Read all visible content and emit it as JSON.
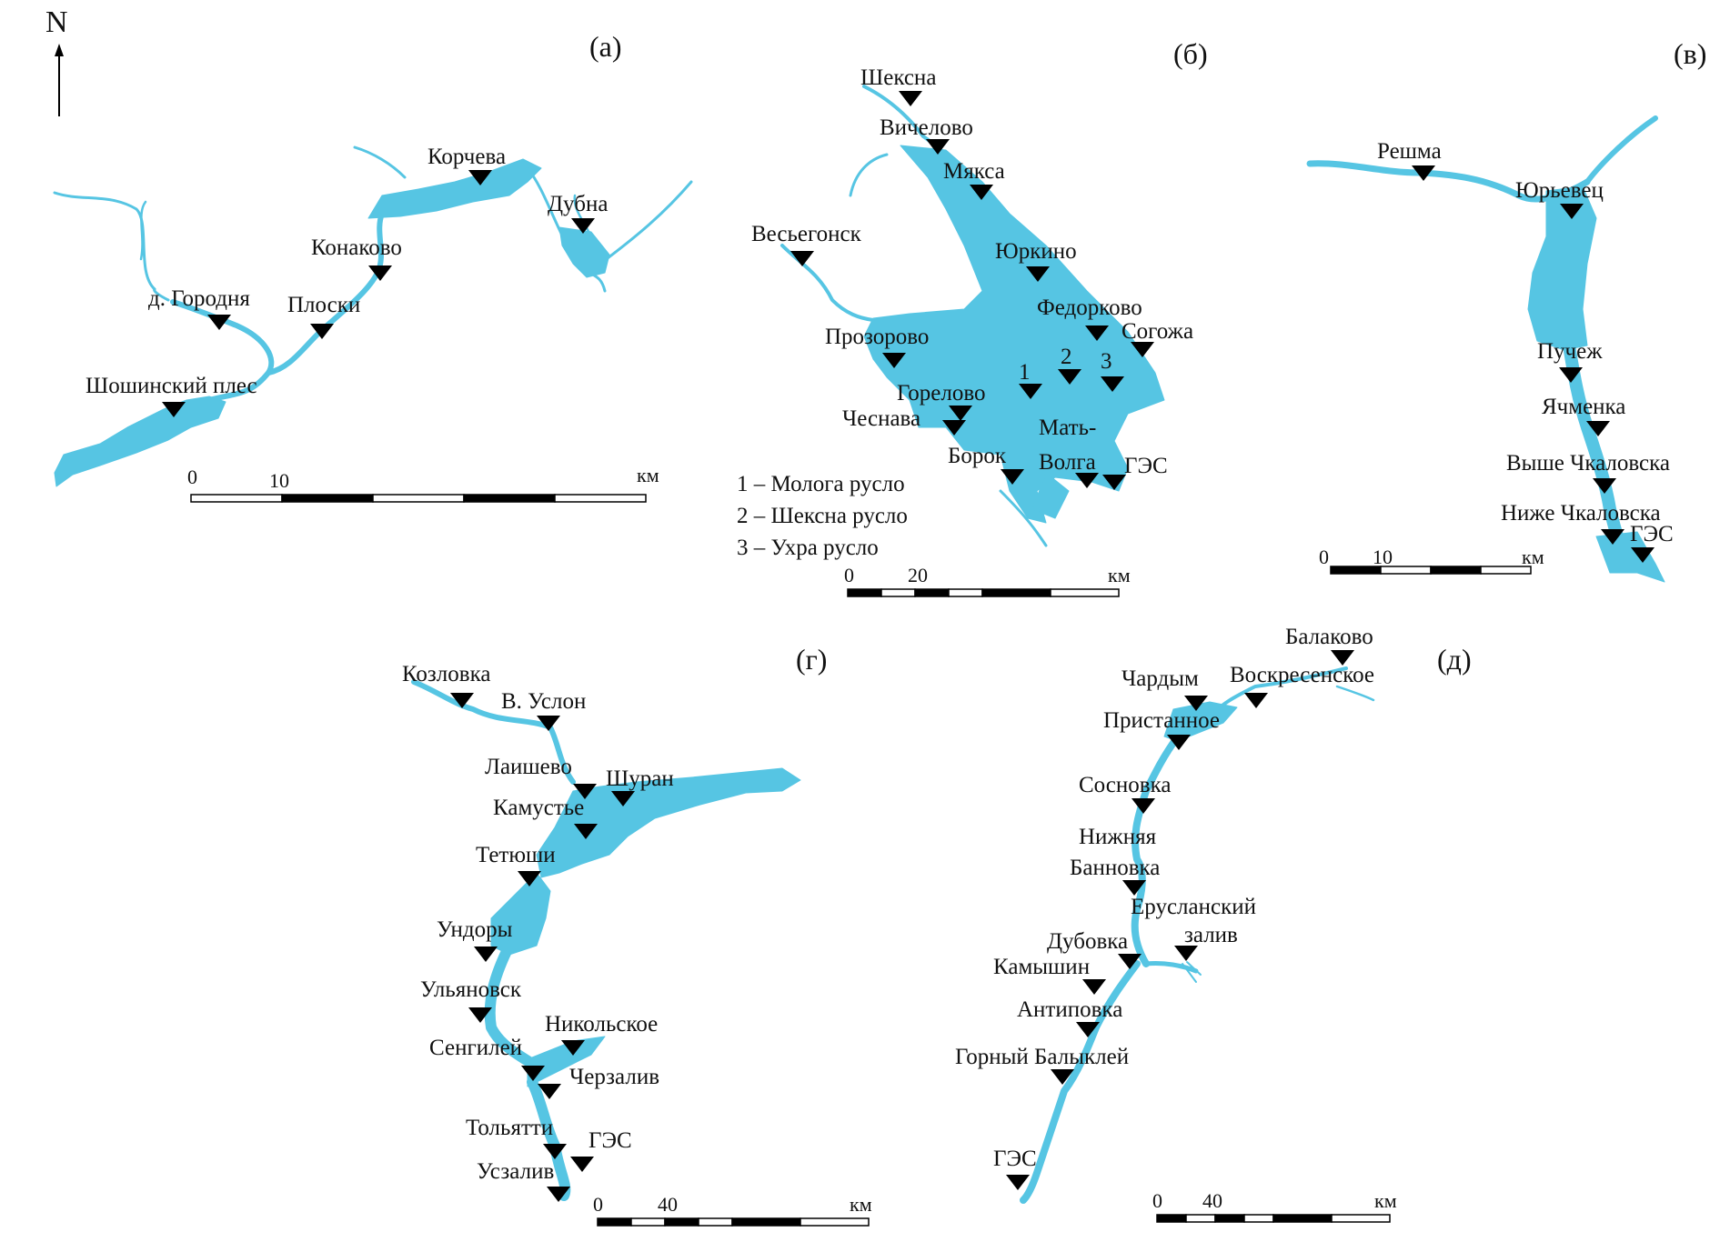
{
  "north": "N",
  "panels": [
    {
      "id": "a",
      "label": "(а)",
      "stations": [
        "Корчева",
        "Дубна",
        "Конаково",
        "д. Городня",
        "Плоски",
        "Шошинский плес"
      ],
      "scale": {
        "start": "0",
        "mid": "10",
        "unit": "км"
      }
    },
    {
      "id": "b",
      "label": "(б)",
      "stations": [
        "Шексна",
        "Вичелово",
        "Мякса",
        "Весьегонск",
        "Юркино",
        "Федорково",
        "Согожа",
        "Прозорово",
        "1",
        "2",
        "3",
        "Горелово",
        "Чеснава",
        "Мать-",
        "Волга",
        "ГЭС",
        "Борок"
      ],
      "legend": [
        "1 – Молога русло",
        "2 – Шексна русло",
        "3 – Ухра русло"
      ],
      "scale": {
        "start": "0",
        "mid": "20",
        "unit": "км"
      }
    },
    {
      "id": "v",
      "label": "(в)",
      "stations": [
        "Решма",
        "Юрьевец",
        "Пучеж",
        "Ячменка",
        "Выше Чкаловска",
        "Ниже Чкаловска",
        "ГЭС"
      ],
      "scale": {
        "start": "0",
        "mid": "10",
        "unit": "км"
      }
    },
    {
      "id": "g",
      "label": "(г)",
      "stations": [
        "Козловка",
        "В. Услон",
        "Лаишево",
        "Шуран",
        "Камустье",
        "Тетюши",
        "Ундоры",
        "Ульяновск",
        "Никольское",
        "Сенгилей",
        "Черзалив",
        "Тольятти",
        "ГЭС",
        "Усзалив"
      ],
      "scale": {
        "start": "0",
        "mid": "40",
        "unit": "км"
      }
    },
    {
      "id": "d",
      "label": "(д)",
      "stations": [
        "Балаково",
        "Чардым",
        "Воскресенское",
        "Пристанное",
        "Сосновка",
        "Нижняя",
        "Банновка",
        "Еруслански­й",
        "залив",
        "Дубовка",
        "Камышин",
        "Антиповка",
        "Горный Балыклей",
        "ГЭС"
      ],
      "scale": {
        "start": "0",
        "mid": "40",
        "unit": "км"
      }
    }
  ],
  "colors": {
    "water": "#56c5e3",
    "marker": "#000000"
  }
}
